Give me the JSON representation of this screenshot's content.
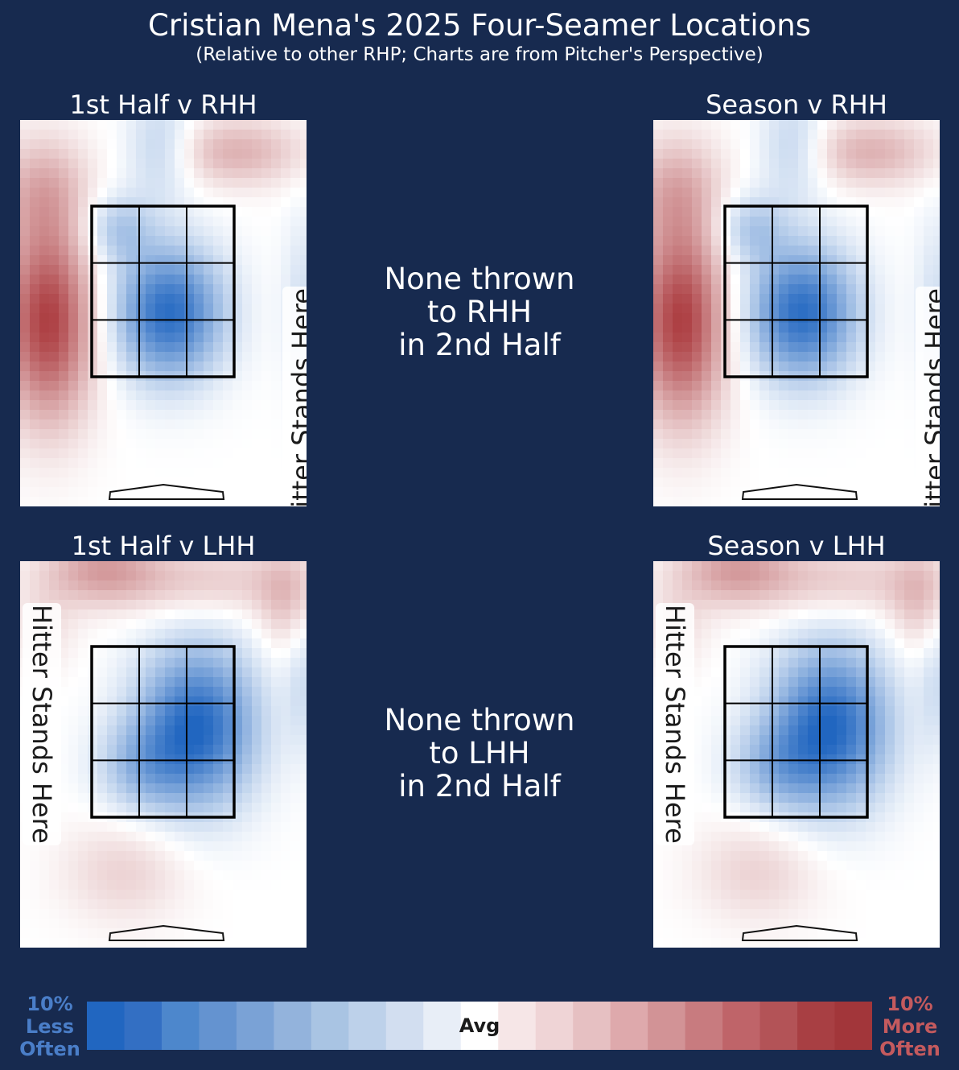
{
  "title": "Cristian Mena's 2025 Four-Seamer Locations",
  "subtitle": "(Relative to other RHP; Charts are from Pitcher's Perspective)",
  "panels": {
    "first_half_rhh": {
      "title": "1st Half v RHH"
    },
    "season_rhh": {
      "title": "Season v RHH"
    },
    "first_half_lhh": {
      "title": "1st Half v LHH"
    },
    "season_lhh": {
      "title": "Season v LHH"
    }
  },
  "hitter_label": "Hitter Stands Here",
  "none_rhh": "None thrown\nto RHH\nin 2nd Half",
  "none_lhh": "None thrown\nto LHH\nin 2nd Half",
  "legend": {
    "left_label": "10%\nLess\nOften",
    "center_label": "Avg",
    "right_label": "10%\nMore\nOften",
    "left_color": "#4a7ec8",
    "right_color": "#c45a5e",
    "colors": [
      "#2166c0",
      "#336fc3",
      "#4d87cc",
      "#6493d0",
      "#7aa2d6",
      "#93b3dc",
      "#a9c4e3",
      "#bdd1ea",
      "#d2def0",
      "#e8eef7",
      "#ffffff",
      "#f6e6e7",
      "#efd4d6",
      "#e6c0c2",
      "#dea9ac",
      "#d29396",
      "#c87b7f",
      "#bf6469",
      "#b35357",
      "#a83f43",
      "#a2363a"
    ]
  },
  "chart_data": [
    {
      "type": "heatmap",
      "title": "1st Half v RHH",
      "value_range": [
        -10,
        10
      ],
      "units": "% relative to RHP average",
      "hot_spots": [
        {
          "zone": "outside-left middle/low",
          "value": 9
        },
        {
          "zone": "upper-left",
          "value": 4
        },
        {
          "zone": "upper-right",
          "value": 4
        },
        {
          "zone": "center / middle-low heart",
          "value": -9
        },
        {
          "zone": "top-center",
          "value": -4
        }
      ]
    },
    {
      "type": "heatmap",
      "title": "Season v RHH",
      "value_range": [
        -10,
        10
      ],
      "units": "% relative to RHP average",
      "hot_spots": [
        {
          "zone": "outside-left middle/low",
          "value": 9
        },
        {
          "zone": "upper-left",
          "value": 4
        },
        {
          "zone": "upper-right",
          "value": 4
        },
        {
          "zone": "center / middle-low heart",
          "value": -9
        },
        {
          "zone": "top-center",
          "value": -4
        }
      ]
    },
    {
      "type": "heatmap",
      "title": "1st Half v LHH",
      "value_range": [
        -10,
        10
      ],
      "units": "% relative to RHP average",
      "hot_spots": [
        {
          "zone": "top edge",
          "value": 4
        },
        {
          "zone": "middle-right in zone",
          "value": -9
        },
        {
          "zone": "below zone",
          "value": 2
        }
      ]
    },
    {
      "type": "heatmap",
      "title": "Season v LHH",
      "value_range": [
        -10,
        10
      ],
      "units": "% relative to RHP average",
      "hot_spots": [
        {
          "zone": "top edge",
          "value": 4
        },
        {
          "zone": "middle-right in zone",
          "value": -9
        },
        {
          "zone": "below zone",
          "value": 2
        }
      ]
    }
  ]
}
